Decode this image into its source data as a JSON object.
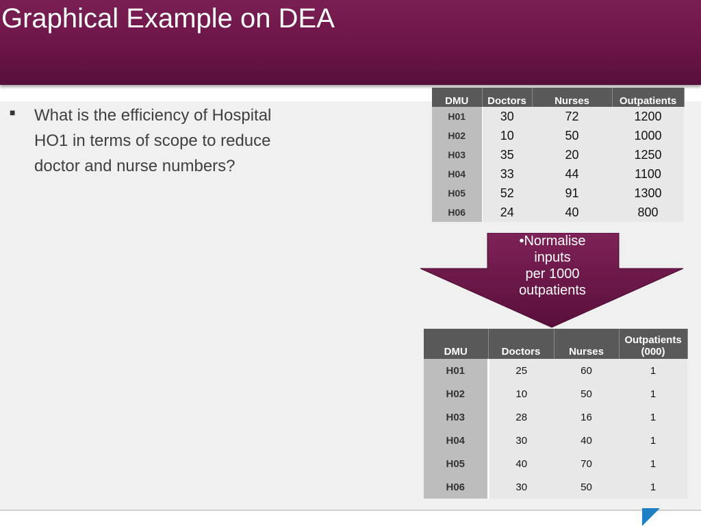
{
  "slide": {
    "title": "Graphical Example on DEA",
    "bullet": "What is the efficiency of Hospital  HO1  in terms of scope to reduce doctor and nurse numbers?",
    "arrow_text": [
      "•Normalise",
      "inputs",
      "per 1000",
      "outpatients"
    ]
  },
  "table1": {
    "headers": [
      "DMU",
      "Doctors",
      "Nurses",
      "Outpatients"
    ],
    "rows": [
      [
        "H01",
        "30",
        "72",
        "1200"
      ],
      [
        "H02",
        "10",
        "50",
        "1000"
      ],
      [
        "H03",
        "35",
        "20",
        "1250"
      ],
      [
        "H04",
        "33",
        "44",
        "1100"
      ],
      [
        "H05",
        "52",
        "91",
        "1300"
      ],
      [
        "H06",
        "24",
        "40",
        "800"
      ]
    ]
  },
  "table2": {
    "headers": [
      "DMU",
      "Doctors",
      "Nurses",
      "Outpatients (000)"
    ],
    "rows": [
      [
        "H01",
        "25",
        "60",
        "1"
      ],
      [
        "H02",
        "10",
        "50",
        "1"
      ],
      [
        "H03",
        "28",
        "16",
        "1"
      ],
      [
        "H04",
        "30",
        "40",
        "1"
      ],
      [
        "H05",
        "40",
        "70",
        "1"
      ],
      [
        "H06",
        "30",
        "50",
        "1"
      ]
    ]
  },
  "colors": {
    "title_bar": "#6b1548",
    "arrow": "#6b1548",
    "accent_triangle": "#1f7fc4"
  }
}
